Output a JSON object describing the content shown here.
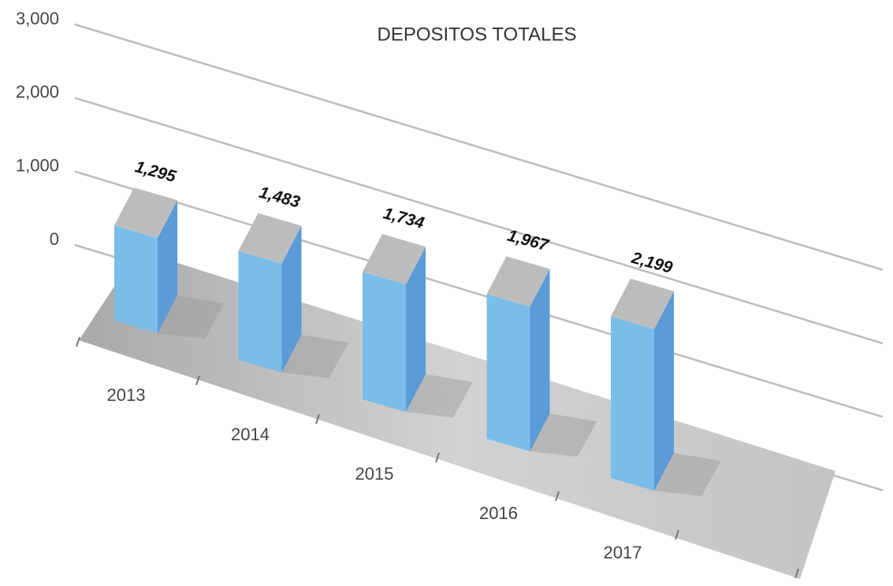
{
  "chart_data": {
    "type": "bar3d",
    "title": "DEPOSITOS TOTALES",
    "categories": [
      "2013",
      "2014",
      "2015",
      "2016",
      "2017"
    ],
    "values": [
      1295,
      1483,
      1734,
      1967,
      2199
    ],
    "value_labels": [
      "1,295",
      "1,483",
      "1,734",
      "1,967",
      "2,199"
    ],
    "colors": {
      "front": "#7bbde9",
      "side": "#5a9bd8",
      "top": "#bdbcbd"
    },
    "ylim": [
      0,
      3000
    ],
    "yticks": [
      {
        "value": 0,
        "label": "0"
      },
      {
        "value": 1000,
        "label": "1,000"
      },
      {
        "value": 2000,
        "label": "2,000"
      },
      {
        "value": 3000,
        "label": "3,000"
      }
    ],
    "grid": true
  }
}
